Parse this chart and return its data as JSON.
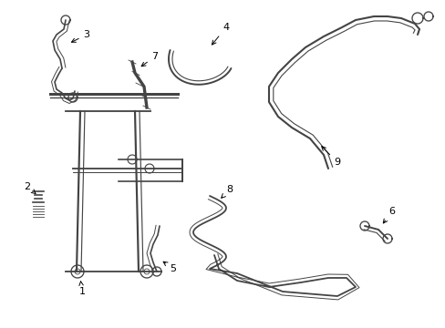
{
  "background_color": "#ffffff",
  "line_color": "#444444",
  "label_color": "#000000",
  "lw": 1.2,
  "figsize": [
    4.89,
    3.6
  ],
  "dpi": 100
}
